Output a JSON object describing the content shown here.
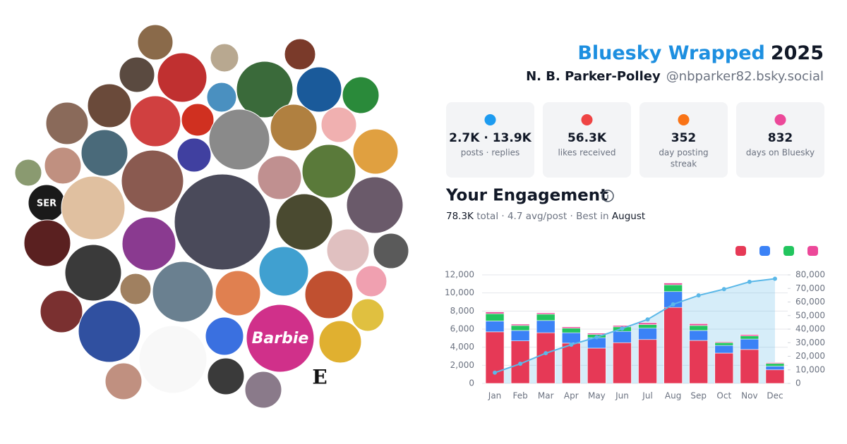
{
  "header": {
    "title_brand": "Bluesky Wrapped",
    "title_year": "2025",
    "name": "N. B. Parker-Polley",
    "handle": "@nbparker82.bsky.social"
  },
  "avatar_labels": [
    "SER",
    "Barbie",
    "E"
  ],
  "stats": [
    {
      "value": "2.7K · 13.9K",
      "label": "posts · replies"
    },
    {
      "value": "56.3K",
      "label": "likes received"
    },
    {
      "value": "352",
      "label": [
        "day posting",
        "streak"
      ]
    },
    {
      "value": "832",
      "label": "days on Bluesky"
    }
  ],
  "engagement": {
    "title": "Your Engagement",
    "summary": [
      "78.3K",
      " total · 4.7 avg/post · Best in ",
      "August"
    ]
  },
  "chart_data": {
    "type": "stacked-bar-line",
    "categories": [
      "Jan",
      "Feb",
      "Mar",
      "Apr",
      "May",
      "Jun",
      "Jul",
      "Aug",
      "Sep",
      "Oct",
      "Nov",
      "Dec"
    ],
    "series": [
      {
        "color": "#e63956",
        "values": [
          5700,
          4700,
          5600,
          4450,
          3900,
          4500,
          4850,
          8400,
          4750,
          3350,
          3750,
          1500
        ]
      },
      {
        "color": "#3b82f6",
        "values": [
          1200,
          1150,
          1350,
          1150,
          1150,
          1250,
          1250,
          1750,
          1100,
          850,
          1150,
          400
        ]
      },
      {
        "color": "#22c55e",
        "values": [
          800,
          550,
          700,
          500,
          350,
          500,
          400,
          750,
          550,
          300,
          350,
          300
        ]
      },
      {
        "color": "#ec4899",
        "values": [
          200,
          150,
          150,
          150,
          150,
          150,
          200,
          200,
          200,
          100,
          150,
          100
        ]
      },
      {
        "color": "#5bb8e8",
        "axis": "y2",
        "type": "line",
        "values": [
          7900,
          14450,
          22250,
          28500,
          34050,
          40450,
          47150,
          58250,
          64850,
          69450,
          74850,
          77150
        ]
      }
    ],
    "ylim": [
      0,
      12000
    ],
    "yticks": [
      0,
      {
        "value": 2000,
        "label": "2,000"
      },
      {
        "value": 4000,
        "label": "4,000"
      },
      {
        "value": 6000,
        "label": "6,000"
      },
      {
        "value": 8000,
        "label": "8,000"
      },
      {
        "value": 10000,
        "label": "10,000"
      },
      {
        "value": 12000,
        "label": "12,000"
      }
    ],
    "y2lim": [
      0,
      80000
    ],
    "y2ticks": [
      0,
      {
        "value": 10000,
        "label": "10,000"
      },
      {
        "value": 20000,
        "label": "20,000"
      },
      {
        "value": 30000,
        "label": "30,000"
      },
      {
        "value": 40000,
        "label": "40,000"
      },
      {
        "value": 50000,
        "label": "50,000"
      },
      {
        "value": 60000,
        "label": "60,000"
      },
      {
        "value": 70000,
        "label": "70,000"
      },
      {
        "value": 80000,
        "label": "80,000"
      }
    ],
    "grid": true
  }
}
